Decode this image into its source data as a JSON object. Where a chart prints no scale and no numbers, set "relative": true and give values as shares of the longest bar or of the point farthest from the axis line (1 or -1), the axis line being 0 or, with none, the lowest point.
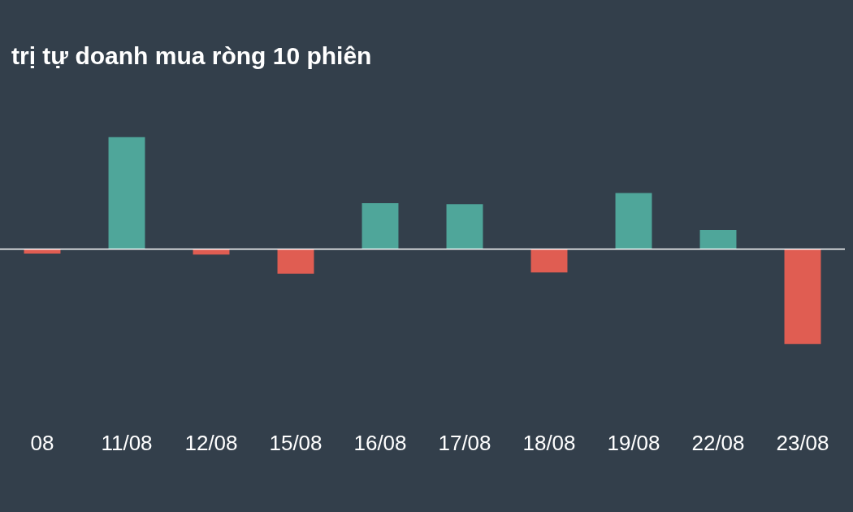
{
  "chart_data": {
    "type": "bar",
    "title": "trị tự doanh mua ròng 10 phiên",
    "relative": true,
    "categories": [
      "08",
      "11/08",
      "12/08",
      "15/08",
      "16/08",
      "17/08",
      "18/08",
      "19/08",
      "22/08",
      "23/08"
    ],
    "values": [
      -0.04,
      1,
      -0.05,
      -0.22,
      0.41,
      0.4,
      -0.21,
      0.5,
      0.17,
      -0.85
    ],
    "colors": [
      "#e05d52",
      "#4fa69a",
      "#e05d52",
      "#e05d52",
      "#4fa69a",
      "#4fa69a",
      "#e05d52",
      "#4fa69a",
      "#4fa69a",
      "#e05d52"
    ],
    "grid": false
  }
}
